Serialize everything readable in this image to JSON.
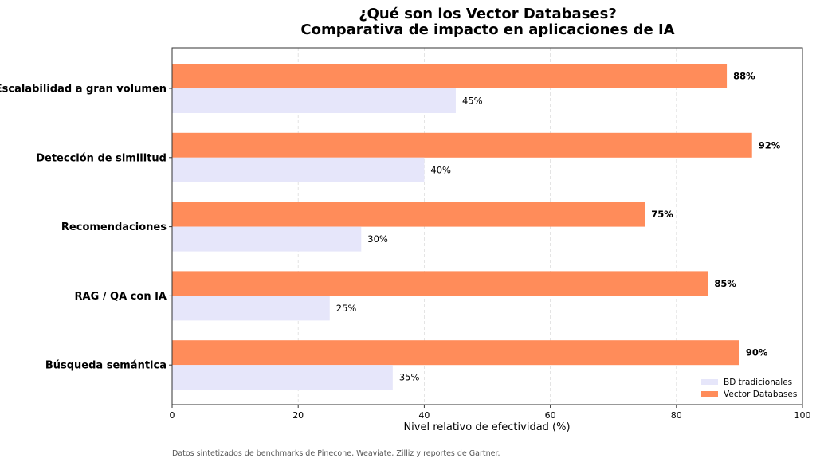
{
  "chart_data": {
    "type": "bar",
    "orientation": "horizontal",
    "title": "¿Qué son los Vector Databases?\nComparativa de impacto en aplicaciones de IA",
    "title_lines": [
      "¿Qué son los Vector Databases?",
      "Comparativa de impacto en aplicaciones de IA"
    ],
    "xlabel": "Nivel relativo de efectividad (%)",
    "ylabel": "",
    "xlim": [
      0,
      100
    ],
    "xticks": [
      0,
      20,
      40,
      60,
      80,
      100
    ],
    "grid": "x dashed",
    "categories": [
      "Escalabilidad a gran volumen",
      "Detección de similitud",
      "Recomendaciones",
      "RAG / QA con IA",
      "Búsqueda semántica"
    ],
    "series": [
      {
        "name": "Vector Databases",
        "color": "#FF8C5A",
        "values": [
          88,
          92,
          75,
          85,
          90
        ],
        "labels": [
          "88%",
          "92%",
          "75%",
          "85%",
          "90%"
        ],
        "label_weight": "bold"
      },
      {
        "name": "BD tradicionales",
        "color": "#E6E6FA",
        "values": [
          45,
          40,
          30,
          25,
          35
        ],
        "labels": [
          "45%",
          "40%",
          "30%",
          "25%",
          "35%"
        ],
        "label_weight": "normal"
      }
    ],
    "legend": {
      "placement": "bottom-right",
      "entries": [
        "BD tradicionales",
        "Vector Databases"
      ]
    },
    "footnote": "Datos sintetizados de benchmarks de Pinecone, Weaviate, Zilliz y reportes de Gartner."
  }
}
